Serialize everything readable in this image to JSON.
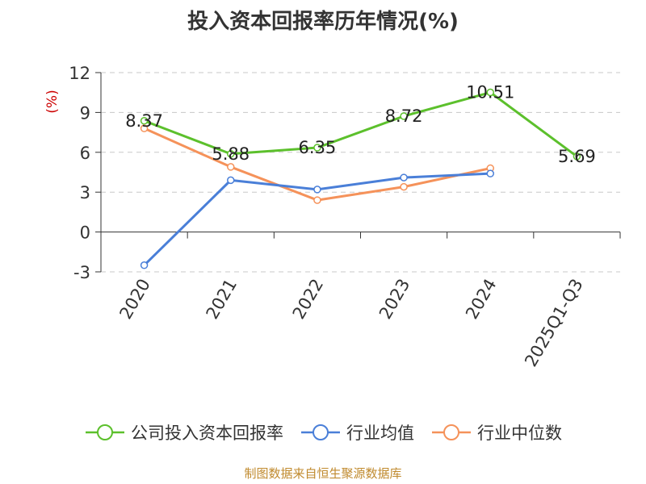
{
  "title": "投入资本回报率历年情况(%)",
  "source_note": "制图数据来自恒生聚源数据库",
  "chart_data": {
    "type": "line",
    "title": "投入资本回报率历年情况(%)",
    "ylabel": "(%)",
    "ylabel_color": "#cc0000",
    "categories": [
      "2020",
      "2021",
      "2022",
      "2023",
      "2024",
      "2025Q1-Q3"
    ],
    "ylim": [
      -3,
      12
    ],
    "yticks": [
      -3,
      0,
      3,
      6,
      9,
      12
    ],
    "grid": true,
    "legend_position": "bottom",
    "series": [
      {
        "name": "公司投入资本回报率",
        "color": "#5cc02c",
        "values": [
          8.37,
          5.88,
          6.35,
          8.72,
          10.51,
          5.69
        ],
        "labels": [
          "8.37",
          "5.88",
          "6.35",
          "8.72",
          "10.51",
          "5.69"
        ]
      },
      {
        "name": "行业均值",
        "color": "#4a7fd8",
        "values": [
          -2.5,
          3.9,
          3.2,
          4.1,
          4.4,
          null
        ],
        "labels": []
      },
      {
        "name": "行业中位数",
        "color": "#f5925a",
        "values": [
          7.8,
          4.9,
          2.4,
          3.4,
          4.8,
          null
        ],
        "labels": []
      }
    ]
  }
}
